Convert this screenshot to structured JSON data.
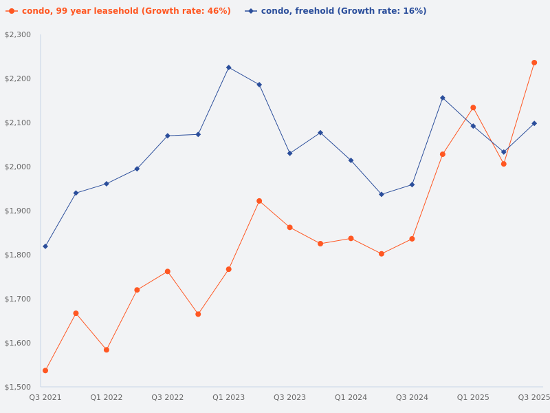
{
  "chart_data": {
    "type": "line",
    "x_tick_labels": [
      "Q3 2021",
      "Q1 2022",
      "Q3 2022",
      "Q1 2023",
      "Q3 2023",
      "Q1 2024",
      "Q3 2024",
      "Q1 2025",
      "Q3 2025"
    ],
    "x_points_per_tick": 2,
    "y_tick_labels": [
      "$1,500",
      "$1,600",
      "$1,700",
      "$1,800",
      "$1,900",
      "$2,000",
      "$2,100",
      "$2,200",
      "$2,300"
    ],
    "ylim": [
      1500,
      2300
    ],
    "grid": false,
    "legend_position": "top-left",
    "series": [
      {
        "name": "condo, 99 year leasehold (Growth rate: 46%)",
        "color": "#ff5722",
        "marker": "circle",
        "values": [
          1537,
          1667,
          1584,
          1720,
          1762,
          1665,
          1767,
          1922,
          1862,
          1825,
          1837,
          1802,
          1836,
          2028,
          2134,
          2006,
          2236
        ]
      },
      {
        "name": "condo, freehold (Growth rate: 16%)",
        "color": "#2b4e9b",
        "marker": "diamond",
        "values": [
          1819,
          1940,
          1961,
          1995,
          2070,
          2073,
          2225,
          2186,
          2030,
          2077,
          2014,
          1937,
          1959,
          2156,
          2092,
          2033,
          2098
        ]
      }
    ]
  }
}
